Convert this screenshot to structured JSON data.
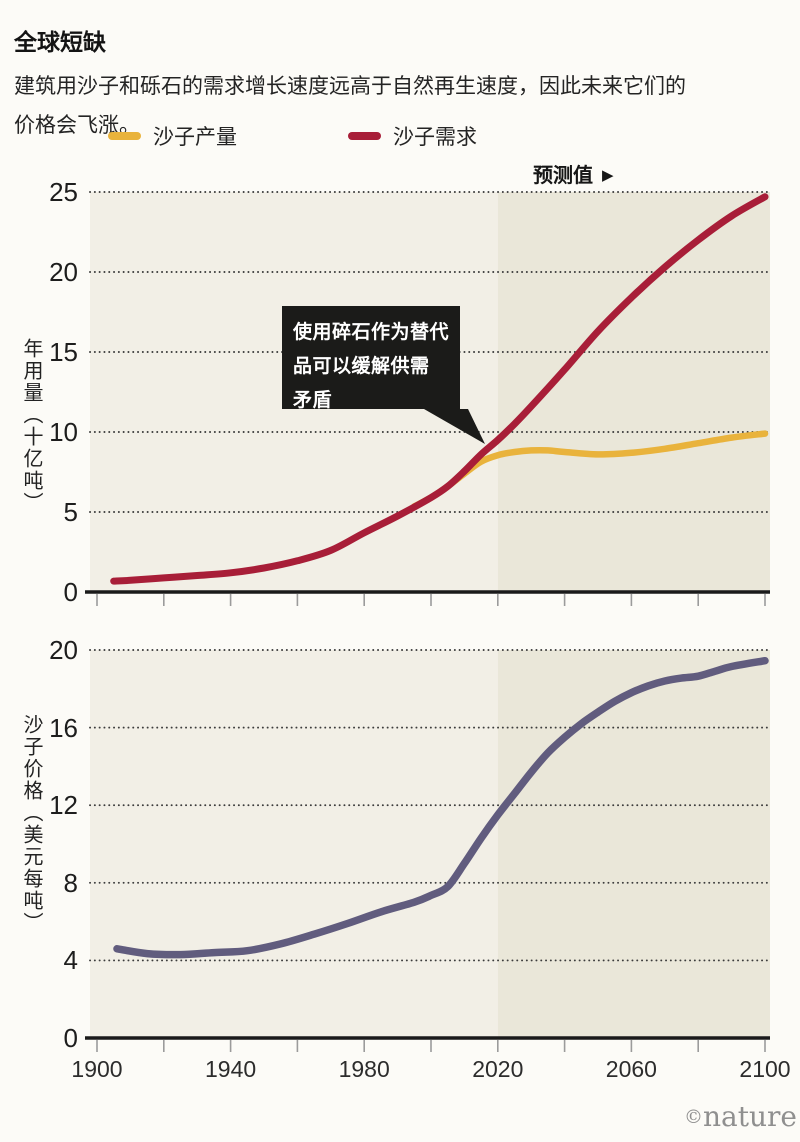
{
  "header": {
    "title": "全球短缺",
    "subtitle": "建筑用沙子和砾石的需求增长速度远高于自然再生速度，因此未来它们的价格会飞涨。"
  },
  "legend": [
    {
      "label": "沙子产量",
      "color": "#e9b33c"
    },
    {
      "label": "沙子需求",
      "color": "#a81e38"
    }
  ],
  "forecast_label": "预测值",
  "forecast_arrow": "▶",
  "annotation": {
    "lines": [
      "使用碎石作为替代",
      "品可以缓解供需",
      "矛盾"
    ],
    "bg_color": "#1b1b19"
  },
  "watermark": {
    "copyright": "©",
    "name": "nature"
  },
  "colors": {
    "page_background": "#fcfbf7",
    "plot_history_bg": "#f2efe6",
    "plot_forecast_bg": "#eae7d9",
    "gridline": "#3c3c3c",
    "axis": "#1a1a1a",
    "tick_mark": "#9b9b9b"
  },
  "chart_data": [
    {
      "type": "line",
      "ylabel": "年用量（十亿吨）",
      "ylim": [
        0,
        25
      ],
      "yticks": [
        0,
        5,
        10,
        15,
        20,
        25
      ],
      "xlim": [
        1900,
        2100
      ],
      "xticks": [
        1900,
        1920,
        1940,
        1960,
        1980,
        2000,
        2020,
        2040,
        2060,
        2080,
        2100
      ],
      "xtick_labels": [],
      "forecast_start": 2020,
      "grid": "dotted-horizontal",
      "legend_position": "top",
      "series": [
        {
          "key": "production",
          "name": "沙子产量",
          "color": "#e9b33c",
          "width": 6.5,
          "x": [
            1995,
            2000,
            2005,
            2010,
            2015,
            2020,
            2025,
            2030,
            2035,
            2040,
            2050,
            2060,
            2070,
            2080,
            2090,
            2100
          ],
          "y": [
            5.35,
            5.9,
            6.6,
            7.4,
            8.15,
            8.55,
            8.75,
            8.85,
            8.85,
            8.75,
            8.6,
            8.7,
            8.95,
            9.3,
            9.65,
            9.9
          ]
        },
        {
          "key": "demand",
          "name": "沙子需求",
          "color": "#a81e38",
          "width": 7,
          "x": [
            1905,
            1910,
            1920,
            1930,
            1940,
            1950,
            1960,
            1970,
            1980,
            1990,
            2000,
            2005,
            2010,
            2015,
            2020,
            2025,
            2030,
            2040,
            2050,
            2060,
            2070,
            2080,
            2090,
            2100
          ],
          "y": [
            0.68,
            0.73,
            0.88,
            1.03,
            1.2,
            1.5,
            1.95,
            2.6,
            3.7,
            4.75,
            5.9,
            6.6,
            7.55,
            8.6,
            9.5,
            10.5,
            11.6,
            13.9,
            16.3,
            18.4,
            20.3,
            22.0,
            23.5,
            24.7
          ]
        }
      ]
    },
    {
      "type": "line",
      "ylabel": "沙子价格（美元每吨）",
      "ylim": [
        0,
        20
      ],
      "yticks": [
        0,
        4,
        8,
        12,
        16,
        20
      ],
      "xlim": [
        1900,
        2100
      ],
      "xticks": [
        1900,
        1920,
        1940,
        1960,
        1980,
        2000,
        2020,
        2040,
        2060,
        2080,
        2100
      ],
      "xtick_labels": [
        1900,
        1940,
        1980,
        2020,
        2060,
        2100
      ],
      "forecast_start": 2020,
      "grid": "dotted-horizontal",
      "series": [
        {
          "key": "price",
          "name": "沙子价格",
          "color": "#615c7e",
          "width": 7.5,
          "x": [
            1906,
            1915,
            1925,
            1935,
            1945,
            1955,
            1965,
            1975,
            1985,
            1995,
            2000,
            2005,
            2010,
            2015,
            2020,
            2025,
            2030,
            2035,
            2040,
            2045,
            2050,
            2055,
            2060,
            2065,
            2070,
            2075,
            2080,
            2085,
            2090,
            2100
          ],
          "y": [
            4.6,
            4.35,
            4.3,
            4.4,
            4.5,
            4.85,
            5.35,
            5.9,
            6.5,
            7.0,
            7.35,
            7.8,
            9.0,
            10.3,
            11.5,
            12.6,
            13.7,
            14.7,
            15.5,
            16.2,
            16.8,
            17.35,
            17.8,
            18.15,
            18.4,
            18.55,
            18.65,
            18.9,
            19.15,
            19.45
          ]
        }
      ]
    }
  ]
}
